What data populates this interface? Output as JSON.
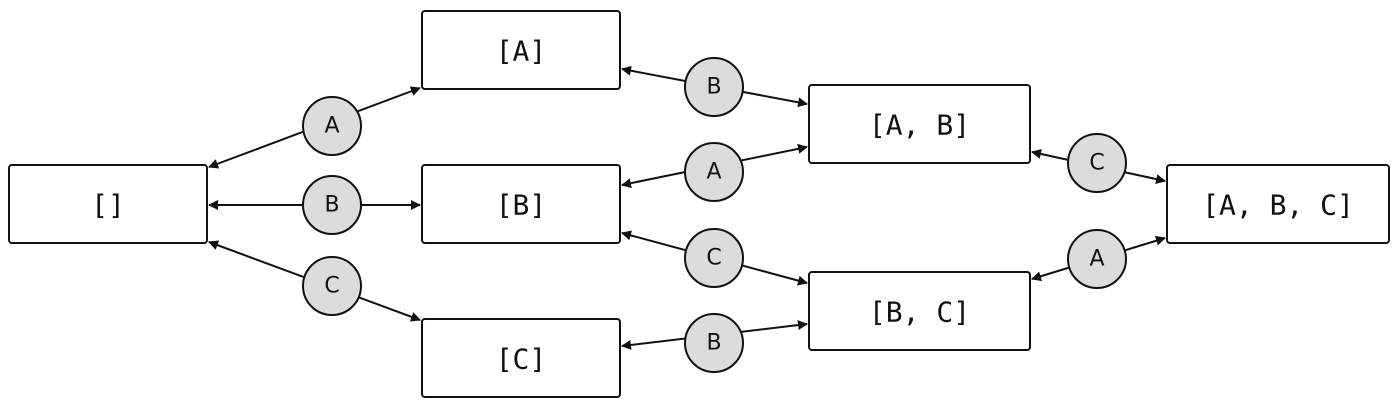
{
  "nodes": [
    {
      "id": "empty",
      "label": "[]"
    },
    {
      "id": "A",
      "label": "[A]"
    },
    {
      "id": "B",
      "label": "[B]"
    },
    {
      "id": "C",
      "label": "[C]"
    },
    {
      "id": "AB",
      "label": "[A, B]"
    },
    {
      "id": "BC",
      "label": "[B, C]"
    },
    {
      "id": "ABC",
      "label": "[A, B, C]"
    }
  ],
  "edges": [
    {
      "from": "empty",
      "to": "A",
      "label": "A"
    },
    {
      "from": "empty",
      "to": "B",
      "label": "B"
    },
    {
      "from": "empty",
      "to": "C",
      "label": "C"
    },
    {
      "from": "A",
      "to": "AB",
      "label": "B"
    },
    {
      "from": "B",
      "to": "AB",
      "label": "A"
    },
    {
      "from": "B",
      "to": "BC",
      "label": "C"
    },
    {
      "from": "C",
      "to": "BC",
      "label": "B"
    },
    {
      "from": "AB",
      "to": "ABC",
      "label": "C"
    },
    {
      "from": "BC",
      "to": "ABC",
      "label": "A"
    }
  ],
  "colors": {
    "box_fill": "#ffffff",
    "stroke": "#111111",
    "edge_label_fill": "#dcdcdc"
  }
}
